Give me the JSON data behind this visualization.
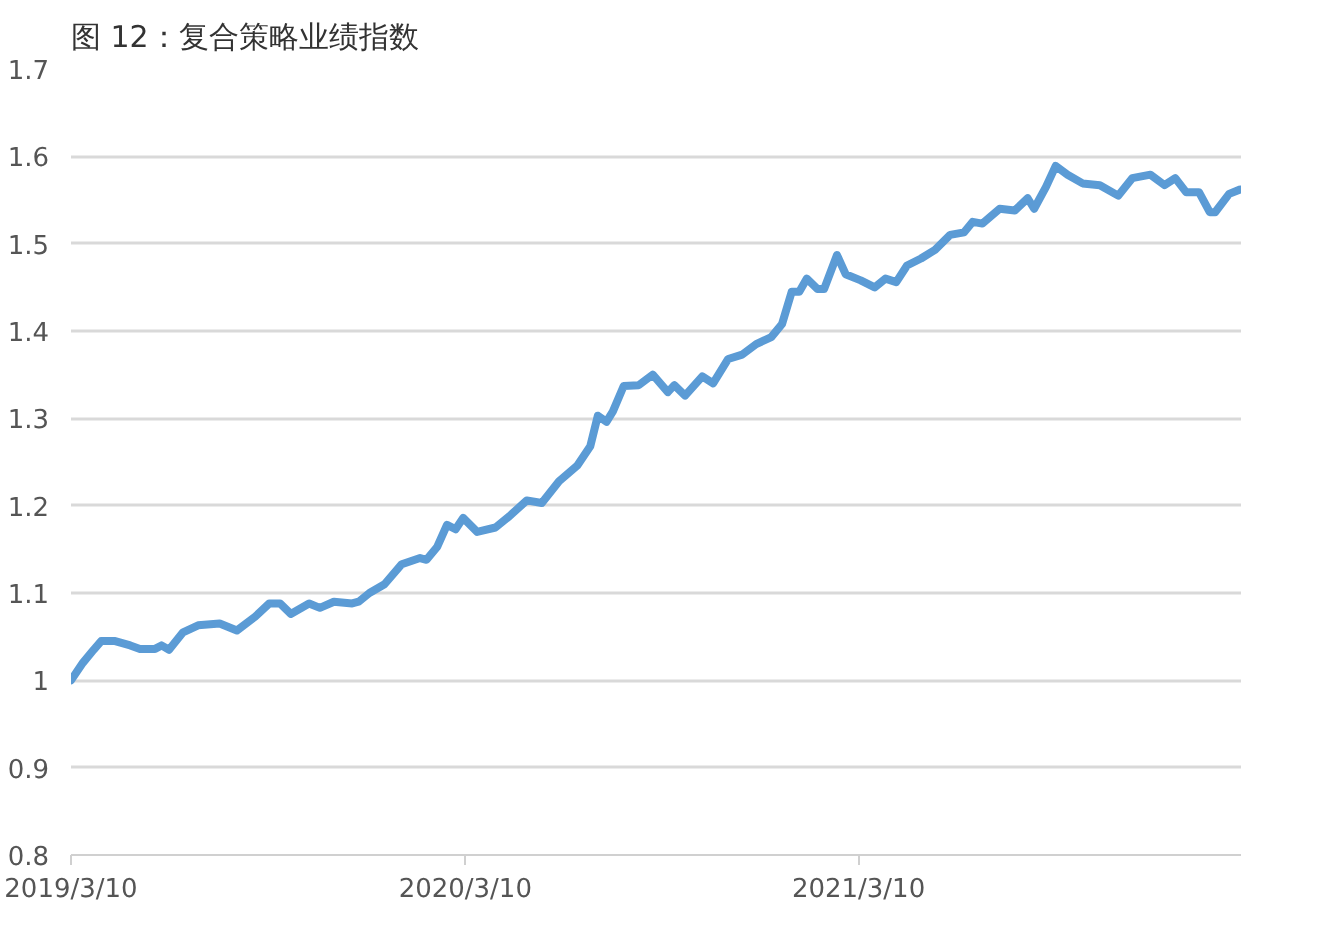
{
  "chart_data": {
    "type": "line",
    "title": "图 12：复合策略业绩指数",
    "x": [
      "2019-03-10",
      "2019-03-21",
      "2019-03-31",
      "2019-04-07",
      "2019-04-20",
      "2019-05-04",
      "2019-05-13",
      "2019-05-27",
      "2019-06-02",
      "2019-06-09",
      "2019-06-22",
      "2019-07-06",
      "2019-07-26",
      "2019-08-11",
      "2019-08-28",
      "2019-09-10",
      "2019-09-20",
      "2019-09-30",
      "2019-10-17",
      "2019-10-27",
      "2019-11-09",
      "2019-11-26",
      "2019-12-02",
      "2019-12-12",
      "2019-12-26",
      "2020-01-11",
      "2020-01-28",
      "2020-02-03",
      "2020-02-13",
      "2020-02-22",
      "2020-03-01",
      "2020-03-08",
      "2020-03-21",
      "2020-04-07",
      "2020-04-20",
      "2020-05-06",
      "2020-05-20",
      "2020-06-05",
      "2020-06-22",
      "2020-07-04",
      "2020-07-11",
      "2020-07-19",
      "2020-07-25",
      "2020-08-04",
      "2020-08-18",
      "2020-08-31",
      "2020-09-14",
      "2020-09-20",
      "2020-09-30",
      "2020-10-16",
      "2020-10-26",
      "2020-11-09",
      "2020-11-22",
      "2020-12-05",
      "2020-12-19",
      "2020-12-29",
      "2021-01-07",
      "2021-01-14",
      "2021-01-21",
      "2021-01-31",
      "2021-02-06",
      "2021-02-18",
      "2021-02-26",
      "2021-03-12",
      "2021-03-25",
      "2021-04-04",
      "2021-04-14",
      "2021-04-24",
      "2021-05-07",
      "2021-05-20",
      "2021-06-03",
      "2021-06-16",
      "2021-06-24",
      "2021-07-03",
      "2021-07-19",
      "2021-08-02",
      "2021-08-14",
      "2021-08-20",
      "2021-08-31",
      "2021-09-09",
      "2021-09-20",
      "2021-10-04",
      "2021-10-20",
      "2021-11-06",
      "2021-11-19",
      "2021-12-06",
      "2021-12-19",
      "2021-12-29",
      "2022-01-08",
      "2022-01-20",
      "2022-01-30",
      "2022-02-04",
      "2022-02-17",
      "2022-02-27"
    ],
    "series": [
      {
        "color": "#5b9bd5",
        "values": [
          1.0,
          1.02,
          1.035,
          1.045,
          1.045,
          1.04,
          1.036,
          1.036,
          1.04,
          1.035,
          1.055,
          1.063,
          1.065,
          1.057,
          1.073,
          1.088,
          1.088,
          1.076,
          1.088,
          1.083,
          1.09,
          1.088,
          1.09,
          1.1,
          1.11,
          1.133,
          1.14,
          1.138,
          1.153,
          1.178,
          1.173,
          1.186,
          1.17,
          1.175,
          1.188,
          1.206,
          1.203,
          1.228,
          1.246,
          1.268,
          1.303,
          1.296,
          1.308,
          1.337,
          1.338,
          1.35,
          1.33,
          1.338,
          1.326,
          1.348,
          1.34,
          1.368,
          1.373,
          1.385,
          1.393,
          1.408,
          1.445,
          1.445,
          1.46,
          1.448,
          1.448,
          1.487,
          1.465,
          1.458,
          1.45,
          1.46,
          1.456,
          1.475,
          1.483,
          1.493,
          1.51,
          1.513,
          1.525,
          1.523,
          1.54,
          1.538,
          1.552,
          1.54,
          1.565,
          1.589,
          1.579,
          1.569,
          1.567,
          1.555,
          1.575,
          1.579,
          1.567,
          1.575,
          1.559,
          1.559,
          1.536,
          1.536,
          1.557,
          1.562
        ]
      }
    ],
    "xlim": [
      "2019-03-10",
      "2022-02-28"
    ],
    "xticks": [
      {
        "value": "2019-03-10",
        "label": "2019/3/10"
      },
      {
        "value": "2020-03-10",
        "label": "2020/3/10"
      },
      {
        "value": "2021-03-10",
        "label": "2021/3/10"
      }
    ],
    "ylim": [
      0.8,
      1.7
    ],
    "yticks": [
      0.8,
      0.9,
      1,
      1.1,
      1.2,
      1.3,
      1.4,
      1.5,
      1.6,
      1.7
    ],
    "grid": "y",
    "marker": "none",
    "line_style": "solid"
  }
}
